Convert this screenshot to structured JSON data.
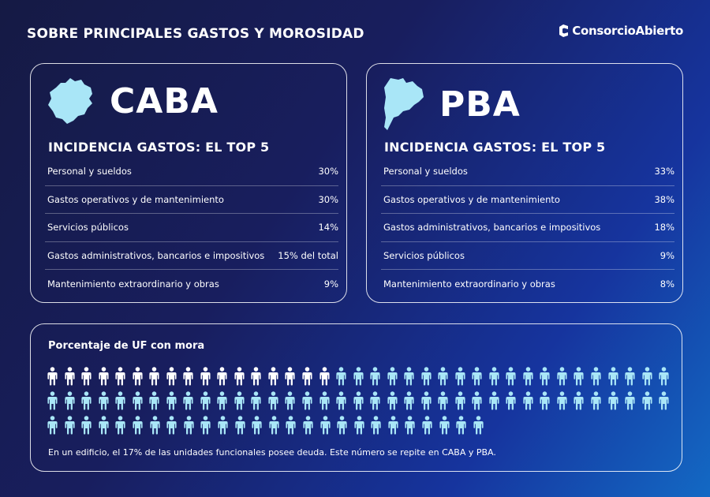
{
  "header": {
    "title": "SOBRE PRINCIPALES GASTOS Y MOROSIDAD",
    "logo_text": "ConsorcioAbierto"
  },
  "colors": {
    "accent": "#a9e6f7",
    "highlight_person": "#ffffff",
    "person": "#a9e6f7",
    "background_dark": "#151a44",
    "background_light": "#1369c4"
  },
  "caba": {
    "name": "CABA",
    "map_icon": "caba-map-icon",
    "section_title": "INCIDENCIA GASTOS: EL TOP 5",
    "rows": [
      {
        "label": "Personal y sueldos",
        "value": "30%"
      },
      {
        "label": "Gastos operativos y de mantenimiento",
        "value": "30%"
      },
      {
        "label": "Servicios públicos",
        "value": "14%"
      },
      {
        "label": "Gastos administrativos, bancarios e impositivos",
        "value": "15% del total"
      },
      {
        "label": "Mantenimiento extraordinario y obras",
        "value": "9%"
      }
    ]
  },
  "pba": {
    "name": "PBA",
    "map_icon": "pba-map-icon",
    "section_title": "INCIDENCIA GASTOS: EL TOP 5",
    "rows": [
      {
        "label": "Personal y sueldos",
        "value": "33%"
      },
      {
        "label": "Gastos operativos y de mantenimiento",
        "value": "38%"
      },
      {
        "label": "Gastos administrativos, bancarios e impositivos",
        "value": "18%"
      },
      {
        "label": "Servicios públicos",
        "value": "9%"
      },
      {
        "label": "Mantenimiento extraordinario y obras",
        "value": "8%"
      }
    ]
  },
  "mora": {
    "title": "Porcentaje de UF con mora",
    "highlighted_count": 17,
    "total_count": 100,
    "rows": [
      37,
      37,
      26
    ],
    "note": "En un edificio, el 17% de las unidades funcionales posee deuda. Este número se repite en CABA y PBA."
  }
}
